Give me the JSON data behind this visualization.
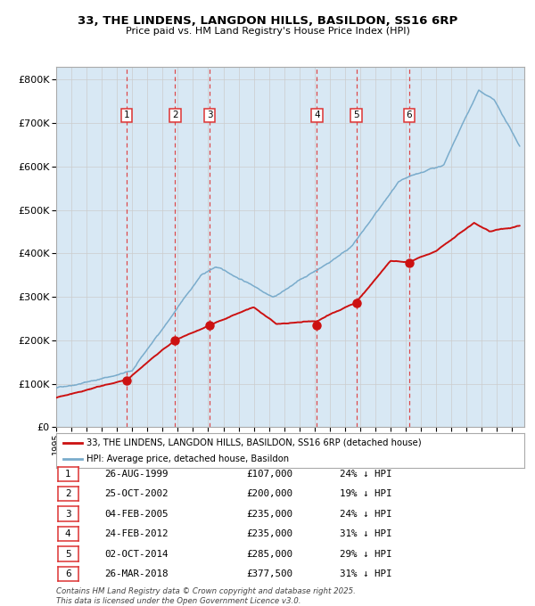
{
  "title_line1": "33, THE LINDENS, LANGDON HILLS, BASILDON, SS16 6RP",
  "title_line2": "Price paid vs. HM Land Registry's House Price Index (HPI)",
  "transactions": [
    {
      "num": 1,
      "date_label": "26-AUG-1999",
      "date_year": 1999.65,
      "price": 107000,
      "pct": "24% ↓ HPI"
    },
    {
      "num": 2,
      "date_label": "25-OCT-2002",
      "date_year": 2002.82,
      "price": 200000,
      "pct": "19% ↓ HPI"
    },
    {
      "num": 3,
      "date_label": "04-FEB-2005",
      "date_year": 2005.09,
      "price": 235000,
      "pct": "24% ↓ HPI"
    },
    {
      "num": 4,
      "date_label": "24-FEB-2012",
      "date_year": 2012.15,
      "price": 235000,
      "pct": "31% ↓ HPI"
    },
    {
      "num": 5,
      "date_label": "02-OCT-2014",
      "date_year": 2014.75,
      "price": 285000,
      "pct": "29% ↓ HPI"
    },
    {
      "num": 6,
      "date_label": "26-MAR-2018",
      "date_year": 2018.23,
      "price": 377500,
      "pct": "31% ↓ HPI"
    }
  ],
  "hpi_color": "#7aaccc",
  "price_color": "#cc1111",
  "dashed_color": "#dd3333",
  "bg_color": "#d8e8f4",
  "grid_color": "#cccccc",
  "ylim": [
    0,
    830000
  ],
  "xlim_start": 1995.0,
  "xlim_end": 2025.8,
  "legend_label_price": "33, THE LINDENS, LANGDON HILLS, BASILDON, SS16 6RP (detached house)",
  "legend_label_hpi": "HPI: Average price, detached house, Basildon",
  "footer": "Contains HM Land Registry data © Crown copyright and database right 2025.\nThis data is licensed under the Open Government Licence v3.0."
}
